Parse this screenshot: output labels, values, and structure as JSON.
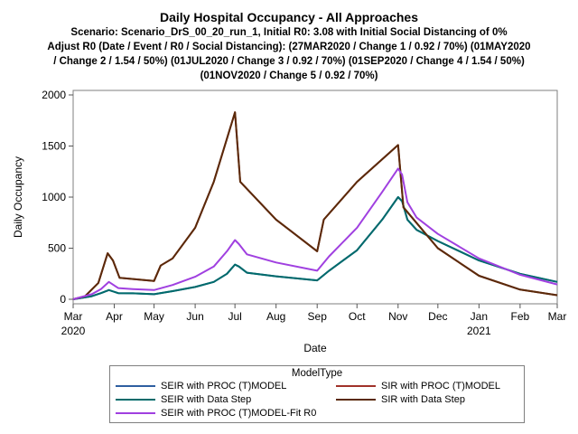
{
  "chart_data": {
    "type": "line",
    "title": "Daily Hospital Occupancy - All Approaches",
    "subtitle_lines": [
      "Scenario: Scenario_DrS_00_20_run_1, Initial R0: 3.08 with Initial Social Distancing of 0%",
      "Adjust R0 (Date / Event / R0 / Social Distancing): (27MAR2020 / Change 1 / 0.92 / 70%) (01MAY2020",
      "/ Change 2 / 1.54 / 50%) (01JUL2020 / Change 3 / 0.92 / 70%) (01SEP2020 / Change 4 / 1.54 / 50%)",
      "(01NOV2020 / Change 5 / 0.92 / 70%)"
    ],
    "xlabel": "Date",
    "ylabel": "Daily Occupancy",
    "xlim": [
      "2020-03-01",
      "2021-03-01"
    ],
    "ylim": [
      0,
      2000
    ],
    "x_ticks": [
      "2020-03-01",
      "2020-04-01",
      "2020-05-01",
      "2020-06-01",
      "2020-07-01",
      "2020-08-01",
      "2020-09-01",
      "2020-10-01",
      "2020-11-01",
      "2020-12-01",
      "2021-01-01",
      "2021-02-01",
      "2021-03-01"
    ],
    "x_tick_labels": [
      "Mar",
      "Apr",
      "May",
      "Jun",
      "Jul",
      "Aug",
      "Sep",
      "Oct",
      "Nov",
      "Dec",
      "Jan",
      "Feb",
      "Mar"
    ],
    "x_year_labels": [
      {
        "date": "2020-03-01",
        "label": "2020"
      },
      {
        "date": "2021-01-01",
        "label": "2021"
      }
    ],
    "y_ticks": [
      0,
      500,
      1000,
      1500,
      2000
    ],
    "legend_title": "ModelType",
    "legend_position": "bottom",
    "series": [
      {
        "name": "SEIR with PROC (T)MODEL",
        "color": "#2e5fa0",
        "points": [
          [
            "2020-03-01",
            0
          ],
          [
            "2020-03-15",
            30
          ],
          [
            "2020-03-22",
            60
          ],
          [
            "2020-03-28",
            90
          ],
          [
            "2020-04-04",
            60
          ],
          [
            "2020-04-15",
            58
          ],
          [
            "2020-05-01",
            50
          ],
          [
            "2020-05-15",
            80
          ],
          [
            "2020-06-01",
            120
          ],
          [
            "2020-06-15",
            170
          ],
          [
            "2020-06-25",
            250
          ],
          [
            "2020-07-01",
            340
          ],
          [
            "2020-07-04",
            320
          ],
          [
            "2020-07-10",
            260
          ],
          [
            "2020-08-01",
            225
          ],
          [
            "2020-09-01",
            185
          ],
          [
            "2020-09-10",
            280
          ],
          [
            "2020-10-01",
            480
          ],
          [
            "2020-10-20",
            780
          ],
          [
            "2020-11-01",
            1000
          ],
          [
            "2020-11-04",
            960
          ],
          [
            "2020-11-08",
            780
          ],
          [
            "2020-11-15",
            680
          ],
          [
            "2020-12-01",
            570
          ],
          [
            "2021-01-01",
            380
          ],
          [
            "2021-02-01",
            250
          ],
          [
            "2021-03-01",
            170
          ]
        ]
      },
      {
        "name": "SIR with PROC (T)MODEL",
        "color": "#a0322a",
        "points": [
          [
            "2020-03-01",
            0
          ],
          [
            "2020-03-10",
            30
          ],
          [
            "2020-03-20",
            160
          ],
          [
            "2020-03-27",
            450
          ],
          [
            "2020-03-31",
            380
          ],
          [
            "2020-04-05",
            210
          ],
          [
            "2020-05-01",
            180
          ],
          [
            "2020-05-06",
            330
          ],
          [
            "2020-05-15",
            400
          ],
          [
            "2020-06-01",
            700
          ],
          [
            "2020-06-15",
            1150
          ],
          [
            "2020-07-01",
            1830
          ],
          [
            "2020-07-05",
            1150
          ],
          [
            "2020-08-01",
            780
          ],
          [
            "2020-09-01",
            470
          ],
          [
            "2020-09-06",
            780
          ],
          [
            "2020-10-01",
            1150
          ],
          [
            "2020-11-01",
            1510
          ],
          [
            "2020-11-05",
            900
          ],
          [
            "2020-12-01",
            500
          ],
          [
            "2021-01-01",
            230
          ],
          [
            "2021-02-01",
            95
          ],
          [
            "2021-03-01",
            40
          ]
        ]
      },
      {
        "name": "SEIR with Data Step",
        "color": "#006b6b",
        "points": [
          [
            "2020-03-01",
            0
          ],
          [
            "2020-03-15",
            30
          ],
          [
            "2020-03-22",
            60
          ],
          [
            "2020-03-28",
            90
          ],
          [
            "2020-04-04",
            60
          ],
          [
            "2020-04-15",
            58
          ],
          [
            "2020-05-01",
            50
          ],
          [
            "2020-05-15",
            80
          ],
          [
            "2020-06-01",
            120
          ],
          [
            "2020-06-15",
            170
          ],
          [
            "2020-06-25",
            250
          ],
          [
            "2020-07-01",
            340
          ],
          [
            "2020-07-04",
            320
          ],
          [
            "2020-07-10",
            260
          ],
          [
            "2020-08-01",
            225
          ],
          [
            "2020-09-01",
            185
          ],
          [
            "2020-09-10",
            280
          ],
          [
            "2020-10-01",
            480
          ],
          [
            "2020-10-20",
            780
          ],
          [
            "2020-11-01",
            1000
          ],
          [
            "2020-11-04",
            960
          ],
          [
            "2020-11-08",
            780
          ],
          [
            "2020-11-15",
            680
          ],
          [
            "2020-12-01",
            570
          ],
          [
            "2021-01-01",
            380
          ],
          [
            "2021-02-01",
            250
          ],
          [
            "2021-03-01",
            170
          ]
        ]
      },
      {
        "name": "SIR with Data Step",
        "color": "#5a2a0a",
        "points": [
          [
            "2020-03-01",
            0
          ],
          [
            "2020-03-10",
            30
          ],
          [
            "2020-03-20",
            160
          ],
          [
            "2020-03-27",
            450
          ],
          [
            "2020-03-31",
            380
          ],
          [
            "2020-04-05",
            210
          ],
          [
            "2020-05-01",
            180
          ],
          [
            "2020-05-06",
            330
          ],
          [
            "2020-05-15",
            400
          ],
          [
            "2020-06-01",
            700
          ],
          [
            "2020-06-15",
            1150
          ],
          [
            "2020-07-01",
            1830
          ],
          [
            "2020-07-05",
            1150
          ],
          [
            "2020-08-01",
            780
          ],
          [
            "2020-09-01",
            470
          ],
          [
            "2020-09-06",
            780
          ],
          [
            "2020-10-01",
            1150
          ],
          [
            "2020-11-01",
            1510
          ],
          [
            "2020-11-05",
            900
          ],
          [
            "2020-12-01",
            500
          ],
          [
            "2021-01-01",
            230
          ],
          [
            "2021-02-01",
            95
          ],
          [
            "2021-03-01",
            40
          ]
        ]
      },
      {
        "name": "SEIR with PROC (T)MODEL-Fit R0",
        "color": "#a040e0",
        "points": [
          [
            "2020-03-01",
            0
          ],
          [
            "2020-03-15",
            50
          ],
          [
            "2020-03-22",
            100
          ],
          [
            "2020-03-28",
            170
          ],
          [
            "2020-04-04",
            110
          ],
          [
            "2020-04-15",
            100
          ],
          [
            "2020-05-01",
            90
          ],
          [
            "2020-05-15",
            140
          ],
          [
            "2020-06-01",
            220
          ],
          [
            "2020-06-15",
            320
          ],
          [
            "2020-06-25",
            470
          ],
          [
            "2020-07-01",
            580
          ],
          [
            "2020-07-04",
            540
          ],
          [
            "2020-07-10",
            440
          ],
          [
            "2020-08-01",
            360
          ],
          [
            "2020-09-01",
            280
          ],
          [
            "2020-09-10",
            420
          ],
          [
            "2020-10-01",
            700
          ],
          [
            "2020-10-20",
            1050
          ],
          [
            "2020-11-01",
            1280
          ],
          [
            "2020-11-04",
            1220
          ],
          [
            "2020-11-08",
            950
          ],
          [
            "2020-11-15",
            800
          ],
          [
            "2020-12-01",
            640
          ],
          [
            "2021-01-01",
            400
          ],
          [
            "2021-02-01",
            240
          ],
          [
            "2021-03-01",
            145
          ]
        ]
      }
    ]
  }
}
